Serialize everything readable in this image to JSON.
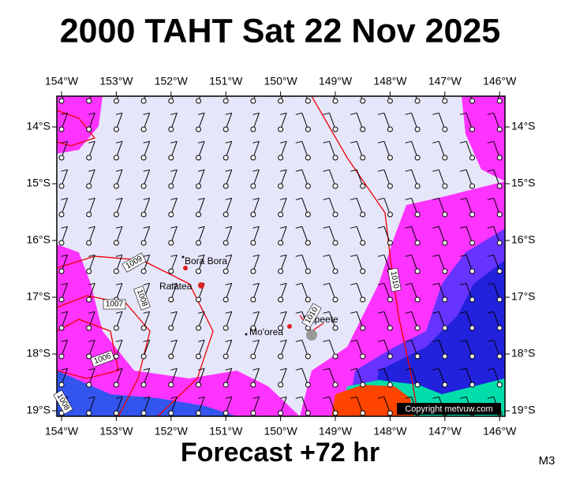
{
  "title": "2000 TAHT Sat 22 Nov 2025",
  "map": {
    "lon_ticks": [
      {
        "value": -154,
        "label": "154°W"
      },
      {
        "value": -153,
        "label": "153°W"
      },
      {
        "value": -152,
        "label": "152°W"
      },
      {
        "value": -151,
        "label": "151°W"
      },
      {
        "value": -150,
        "label": "150°W"
      },
      {
        "value": -149,
        "label": "149°W"
      },
      {
        "value": -148,
        "label": "148°W"
      },
      {
        "value": -147,
        "label": "147°W"
      },
      {
        "value": -146,
        "label": "146°W"
      }
    ],
    "lat_ticks": [
      {
        "value": -14,
        "label": "14°S"
      },
      {
        "value": -15,
        "label": "15°S"
      },
      {
        "value": -16,
        "label": "16°S"
      },
      {
        "value": -17,
        "label": "17°S"
      },
      {
        "value": -18,
        "label": "18°S"
      },
      {
        "value": -19,
        "label": "19°S"
      }
    ],
    "places": [
      "Bora Bora",
      "Raiatea",
      "Mo'orea",
      "Papeete"
    ],
    "isobar_labels": [
      1009,
      1008,
      1007,
      1006,
      1008,
      1010,
      1010
    ],
    "copyright": "Copyright metvuw.com"
  },
  "footer": "Forecast +72 hr",
  "code": "M3"
}
